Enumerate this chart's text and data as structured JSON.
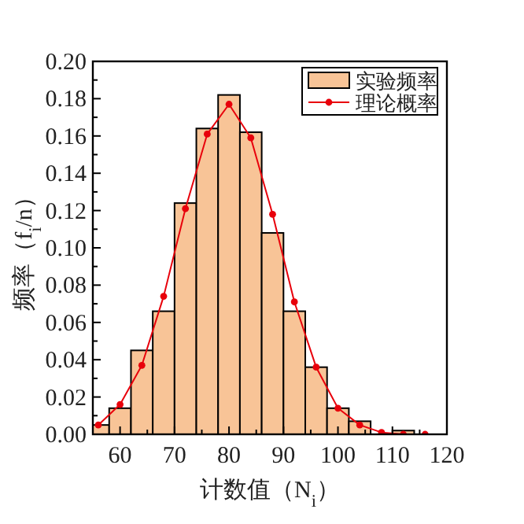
{
  "chart_data": {
    "type": "histogram",
    "xlabel": "计数值（N$_{i}$）",
    "ylabel": "频率（f$_{i}$/n）",
    "bins": [
      55,
      58,
      62,
      66,
      70,
      74,
      78,
      82,
      86,
      90,
      94,
      98,
      102,
      106,
      110,
      114
    ],
    "series": [
      {
        "name": "实验频率",
        "color": "#f8c497",
        "values": [
          0.005,
          0.014,
          0.045,
          0.066,
          0.124,
          0.164,
          0.182,
          0.162,
          0.108,
          0.066,
          0.036,
          0.014,
          0.007,
          null,
          0.002
        ]
      },
      {
        "name": "理论概率",
        "type": "line",
        "color": "#e8000b",
        "marker": "circle",
        "x": [
          56,
          60,
          64,
          68,
          72,
          76,
          80,
          84,
          88,
          92,
          96,
          100,
          104,
          108,
          112,
          116
        ],
        "values": [
          0.005,
          0.016,
          0.037,
          0.074,
          0.121,
          0.161,
          0.177,
          0.159,
          0.118,
          0.071,
          0.036,
          0.014,
          0.005,
          0.001,
          0,
          0
        ]
      }
    ],
    "xlim": [
      55,
      120
    ],
    "xticks": [
      60,
      70,
      80,
      90,
      100,
      110,
      120
    ],
    "ylim": [
      0,
      0.2
    ],
    "yticks": [
      {
        "value": 0,
        "label": "0.00"
      },
      {
        "value": 0.02,
        "label": "0.02"
      },
      {
        "value": 0.04,
        "label": "0.04"
      },
      {
        "value": 0.06,
        "label": "0.06"
      },
      {
        "value": 0.08,
        "label": "0.08"
      },
      {
        "value": 0.1,
        "label": "0.10"
      },
      {
        "value": 0.12,
        "label": "0.12"
      },
      {
        "value": 0.14,
        "label": "0.14"
      },
      {
        "value": 0.16,
        "label": "0.16"
      },
      {
        "value": 0.18,
        "label": "0.18"
      },
      {
        "value": 0.2,
        "label": "0.20"
      }
    ],
    "legend": "top right",
    "grid": false
  }
}
